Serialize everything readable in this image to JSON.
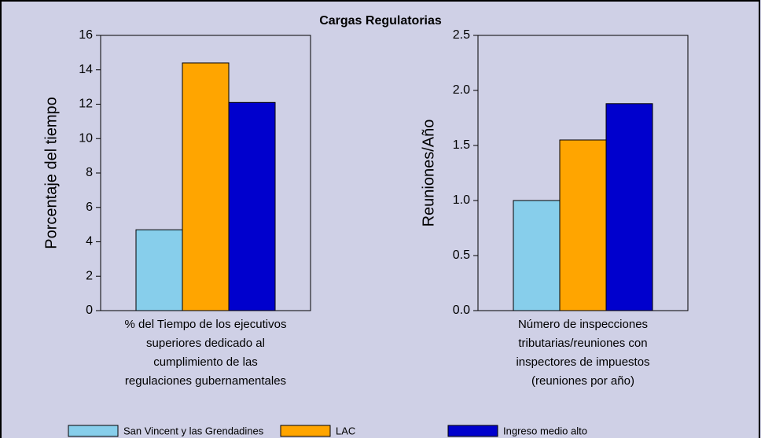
{
  "chart_data": [
    {
      "type": "bar",
      "title": "Cargas Regulatorias",
      "y_label": "Porcentaje del tiempo",
      "categories": [
        "% del Tiempo de los ejecutivos superiores dedicado al cumplimiento de las regulaciones gubernamentales"
      ],
      "series": [
        {
          "name": "San Vincent y las Grendadines",
          "color": "#87ceeb",
          "values": [
            4.7
          ]
        },
        {
          "name": "LAC",
          "color": "#ffa500",
          "values": [
            14.4
          ]
        },
        {
          "name": "Ingreso medio alto",
          "color": "#0000cd",
          "values": [
            12.1
          ]
        }
      ],
      "ylim": [
        0,
        16
      ],
      "yticks": [
        0,
        2,
        4,
        6,
        8,
        10,
        12,
        14,
        16
      ]
    },
    {
      "type": "bar",
      "y_label": "Reuniones/Año",
      "categories": [
        "Número de inspecciones tributarias/reuniones con inspectores de impuestos (reuniones por año)"
      ],
      "series": [
        {
          "color": "#87ceeb",
          "values": [
            1.0
          ]
        },
        {
          "color": "#ffa500",
          "values": [
            1.55
          ]
        },
        {
          "color": "#0000cd",
          "values": [
            1.88
          ]
        }
      ],
      "ylim": [
        0,
        2.5
      ],
      "yticks": [
        {
          "value": 0,
          "label": "0.0"
        },
        {
          "value": 0.5,
          "label": "0.5"
        },
        {
          "value": 1,
          "label": "1.0"
        },
        {
          "value": 1.5,
          "label": "1.5"
        },
        {
          "value": 2,
          "label": "2.0"
        },
        {
          "value": 2.5,
          "label": "2.5"
        }
      ]
    }
  ]
}
